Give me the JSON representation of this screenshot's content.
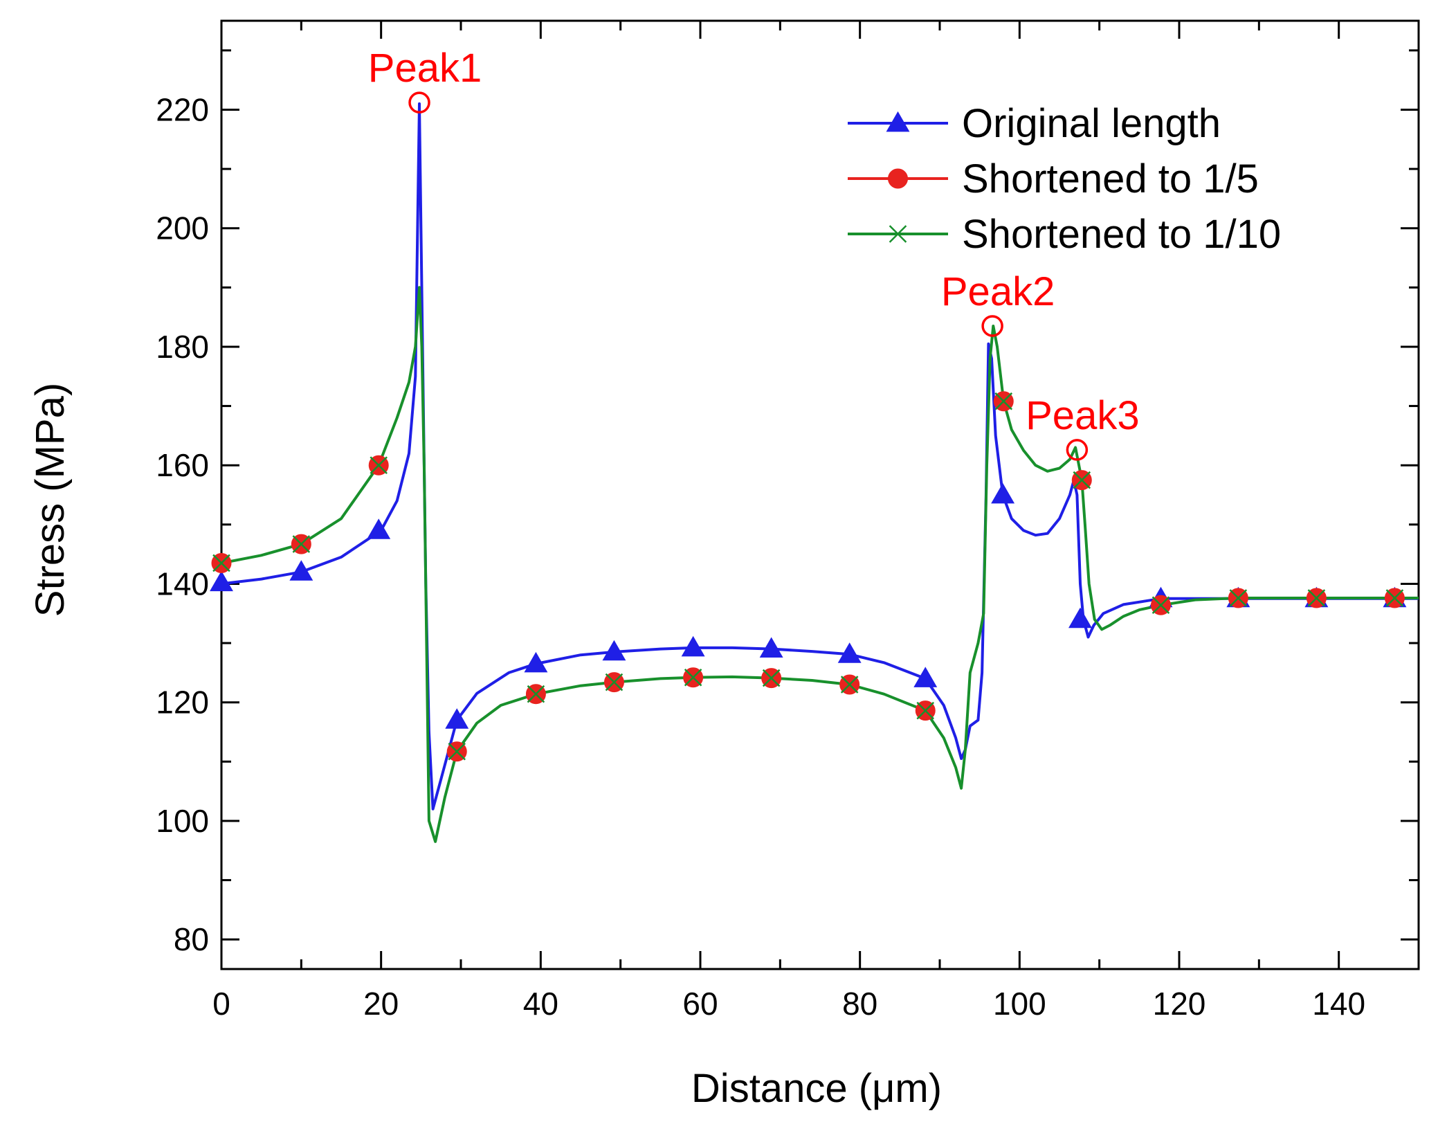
{
  "chart_data": {
    "type": "line",
    "title": "",
    "xlabel": "Distance (μm)",
    "ylabel": "Stress (MPa)",
    "xlim": [
      0,
      150
    ],
    "ylim": [
      75,
      235
    ],
    "xticks": [
      0,
      20,
      40,
      60,
      80,
      100,
      120,
      140
    ],
    "yticks": [
      80,
      100,
      120,
      140,
      160,
      180,
      200,
      220
    ],
    "xtick_labels": [
      "0",
      "20",
      "40",
      "60",
      "80",
      "100",
      "120",
      "140"
    ],
    "ytick_labels": [
      "80",
      "100",
      "120",
      "140",
      "160",
      "180",
      "200",
      "220"
    ],
    "grid": false,
    "legend_position": "top-right",
    "colors": {
      "annotation": "#ff0000",
      "axis": "#000000"
    },
    "series": [
      {
        "name": "Original length",
        "color": "#1f1fe6",
        "marker": "triangle",
        "line": [
          [
            0,
            140
          ],
          [
            5,
            140.8
          ],
          [
            10,
            142
          ],
          [
            15,
            144.5
          ],
          [
            20,
            149
          ],
          [
            22,
            154
          ],
          [
            23.5,
            162
          ],
          [
            24.3,
            175
          ],
          [
            24.8,
            221
          ],
          [
            25.2,
            180
          ],
          [
            25.6,
            140
          ],
          [
            26,
            115
          ],
          [
            26.5,
            102
          ],
          [
            27.5,
            107
          ],
          [
            29.5,
            117
          ],
          [
            32,
            121.5
          ],
          [
            36,
            125
          ],
          [
            39.4,
            126.5
          ],
          [
            45,
            128
          ],
          [
            49.2,
            128.5
          ],
          [
            55,
            129
          ],
          [
            59.1,
            129.2
          ],
          [
            64,
            129.2
          ],
          [
            69,
            129
          ],
          [
            74,
            128.6
          ],
          [
            78.7,
            128.1
          ],
          [
            83,
            126.7
          ],
          [
            88.2,
            124
          ],
          [
            90.5,
            119.5
          ],
          [
            92,
            114
          ],
          [
            92.7,
            110.5
          ],
          [
            93.2,
            112
          ],
          [
            93.8,
            116
          ],
          [
            94.8,
            117
          ],
          [
            95.3,
            125
          ],
          [
            95.8,
            155
          ],
          [
            96.1,
            180.5
          ],
          [
            96.5,
            178
          ],
          [
            97,
            165
          ],
          [
            97.9,
            155
          ],
          [
            99,
            151
          ],
          [
            100.5,
            149
          ],
          [
            102,
            148.2
          ],
          [
            103.5,
            148.5
          ],
          [
            105,
            151
          ],
          [
            106.3,
            155
          ],
          [
            106.8,
            157.5
          ],
          [
            107.2,
            155
          ],
          [
            107.6,
            140
          ],
          [
            108,
            134
          ],
          [
            108.6,
            131
          ],
          [
            109.3,
            133
          ],
          [
            110.5,
            135
          ],
          [
            113,
            136.5
          ],
          [
            117.7,
            137.5
          ],
          [
            122,
            137.5
          ],
          [
            127.4,
            137.5
          ],
          [
            137.2,
            137.5
          ],
          [
            147,
            137.5
          ],
          [
            150,
            137.5
          ]
        ],
        "markers": [
          [
            0,
            140.2
          ],
          [
            10,
            142
          ],
          [
            19.7,
            149
          ],
          [
            29.5,
            117
          ],
          [
            39.4,
            126.5
          ],
          [
            49.2,
            128.5
          ],
          [
            59.1,
            129.2
          ],
          [
            68.9,
            129
          ],
          [
            78.7,
            128.1
          ],
          [
            88.2,
            124
          ],
          [
            97.9,
            155
          ],
          [
            107.6,
            134
          ],
          [
            117.7,
            137.5
          ],
          [
            127.4,
            137.5
          ],
          [
            137.2,
            137.5
          ],
          [
            147,
            137.5
          ]
        ]
      },
      {
        "name": "Shortened to 1/5",
        "color": "#e8231f",
        "marker": "circle",
        "line": [],
        "markers": [
          [
            0,
            143.5
          ],
          [
            10,
            146.7
          ],
          [
            19.7,
            160
          ],
          [
            29.5,
            111.7
          ],
          [
            39.4,
            121.4
          ],
          [
            49.2,
            123.4
          ],
          [
            59.1,
            124.2
          ],
          [
            68.9,
            124.1
          ],
          [
            78.7,
            123
          ],
          [
            88.2,
            118.6
          ],
          [
            98,
            170.8
          ],
          [
            107.8,
            157.5
          ],
          [
            117.7,
            136.4
          ],
          [
            127.4,
            137.6
          ],
          [
            137.2,
            137.6
          ],
          [
            147,
            137.6
          ]
        ]
      },
      {
        "name": "Shortened to 1/10",
        "color": "#18902c",
        "marker": "x",
        "line": [
          [
            0,
            143.5
          ],
          [
            5,
            144.8
          ],
          [
            10,
            146.7
          ],
          [
            15,
            151
          ],
          [
            19.7,
            160
          ],
          [
            22,
            168
          ],
          [
            23.5,
            174
          ],
          [
            24.3,
            180
          ],
          [
            24.8,
            190
          ],
          [
            25.1,
            180
          ],
          [
            25.4,
            160
          ],
          [
            25.7,
            130
          ],
          [
            26,
            100
          ],
          [
            26.8,
            96.5
          ],
          [
            28,
            104
          ],
          [
            29.5,
            111.7
          ],
          [
            32,
            116.5
          ],
          [
            35,
            119.5
          ],
          [
            39.4,
            121.4
          ],
          [
            45,
            122.8
          ],
          [
            49.2,
            123.4
          ],
          [
            55,
            124
          ],
          [
            59.1,
            124.2
          ],
          [
            64,
            124.3
          ],
          [
            68.9,
            124.1
          ],
          [
            74,
            123.7
          ],
          [
            78.7,
            123
          ],
          [
            83,
            121.4
          ],
          [
            88.2,
            118.6
          ],
          [
            90.5,
            114
          ],
          [
            92,
            109
          ],
          [
            92.7,
            105.5
          ],
          [
            93.2,
            112
          ],
          [
            93.8,
            125
          ],
          [
            94.8,
            130
          ],
          [
            95.5,
            135
          ],
          [
            95.9,
            160
          ],
          [
            96.3,
            178
          ],
          [
            96.7,
            183.5
          ],
          [
            97.2,
            180
          ],
          [
            98,
            170.8
          ],
          [
            99,
            166
          ],
          [
            100.5,
            162.5
          ],
          [
            102,
            160
          ],
          [
            103.5,
            159
          ],
          [
            105,
            159.5
          ],
          [
            106.3,
            161
          ],
          [
            107,
            163
          ],
          [
            107.8,
            157.5
          ],
          [
            108.2,
            150
          ],
          [
            108.7,
            140
          ],
          [
            109.4,
            134
          ],
          [
            110.3,
            132.3
          ],
          [
            111.3,
            133
          ],
          [
            113,
            134.5
          ],
          [
            115,
            135.6
          ],
          [
            117.7,
            136.4
          ],
          [
            122,
            137.3
          ],
          [
            127.4,
            137.6
          ],
          [
            137.2,
            137.6
          ],
          [
            147,
            137.6
          ],
          [
            150,
            137.6
          ]
        ],
        "markers": [
          [
            0,
            143.5
          ],
          [
            10,
            146.7
          ],
          [
            19.7,
            160
          ],
          [
            29.5,
            111.7
          ],
          [
            39.4,
            121.4
          ],
          [
            49.2,
            123.4
          ],
          [
            59.1,
            124.2
          ],
          [
            68.9,
            124.1
          ],
          [
            78.7,
            123
          ],
          [
            88.2,
            118.6
          ],
          [
            98,
            170.8
          ],
          [
            107.8,
            157.5
          ],
          [
            117.7,
            136.4
          ],
          [
            127.4,
            137.6
          ],
          [
            137.2,
            137.6
          ],
          [
            147,
            137.6
          ]
        ]
      }
    ],
    "annotations": [
      {
        "label": "Peak1",
        "x": 24.8,
        "y": 221.2
      },
      {
        "label": "Peak2",
        "x": 96.6,
        "y": 183.5
      },
      {
        "label": "Peak3",
        "x": 107.2,
        "y": 162.6
      }
    ]
  }
}
